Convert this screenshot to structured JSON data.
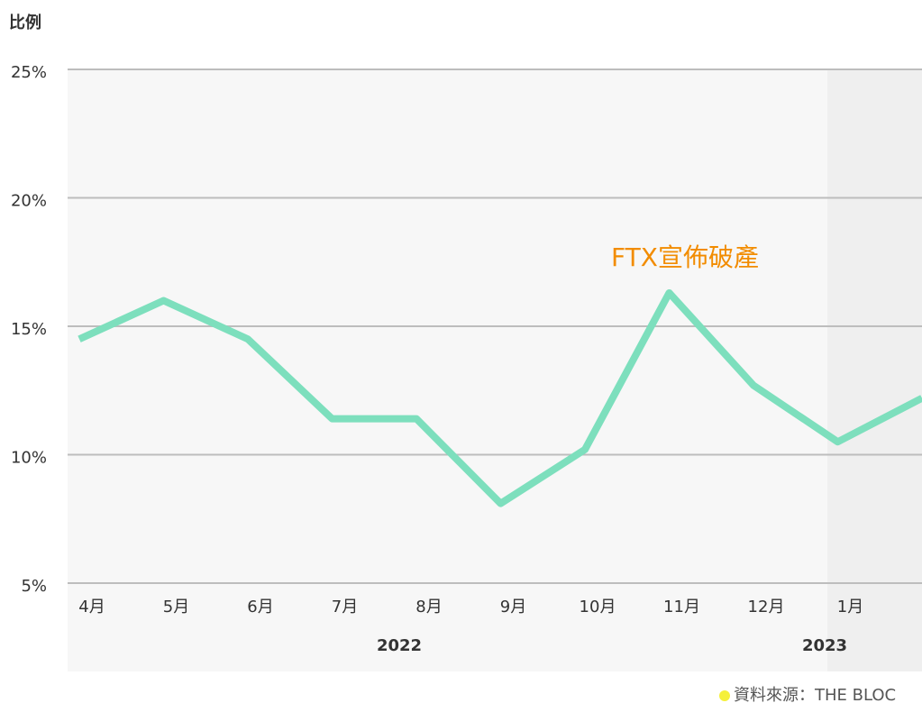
{
  "chart_data": {
    "type": "line",
    "y_label": "比例",
    "categories": [
      "4月",
      "5月",
      "6月",
      "7月",
      "8月",
      "9月",
      "10月",
      "11月",
      "12月",
      "1月",
      null
    ],
    "series": [
      {
        "name": null,
        "color": "#7ddfbd",
        "values": [
          14.5,
          16.0,
          14.5,
          11.4,
          11.4,
          8.1,
          10.2,
          16.3,
          12.7,
          10.5,
          12.2
        ]
      }
    ],
    "ylim": [
      5,
      25
    ],
    "yticks": [
      {
        "value": 5,
        "label": "5%"
      },
      {
        "value": 10,
        "label": "10%"
      },
      {
        "value": 15,
        "label": "15%"
      },
      {
        "value": 20,
        "label": "20%"
      },
      {
        "value": 25,
        "label": "25%"
      }
    ],
    "grid": true,
    "years": [
      "2022",
      "2023"
    ],
    "annotation": "FTX宣佈破產",
    "source": "資料來源：THE BLOC"
  }
}
